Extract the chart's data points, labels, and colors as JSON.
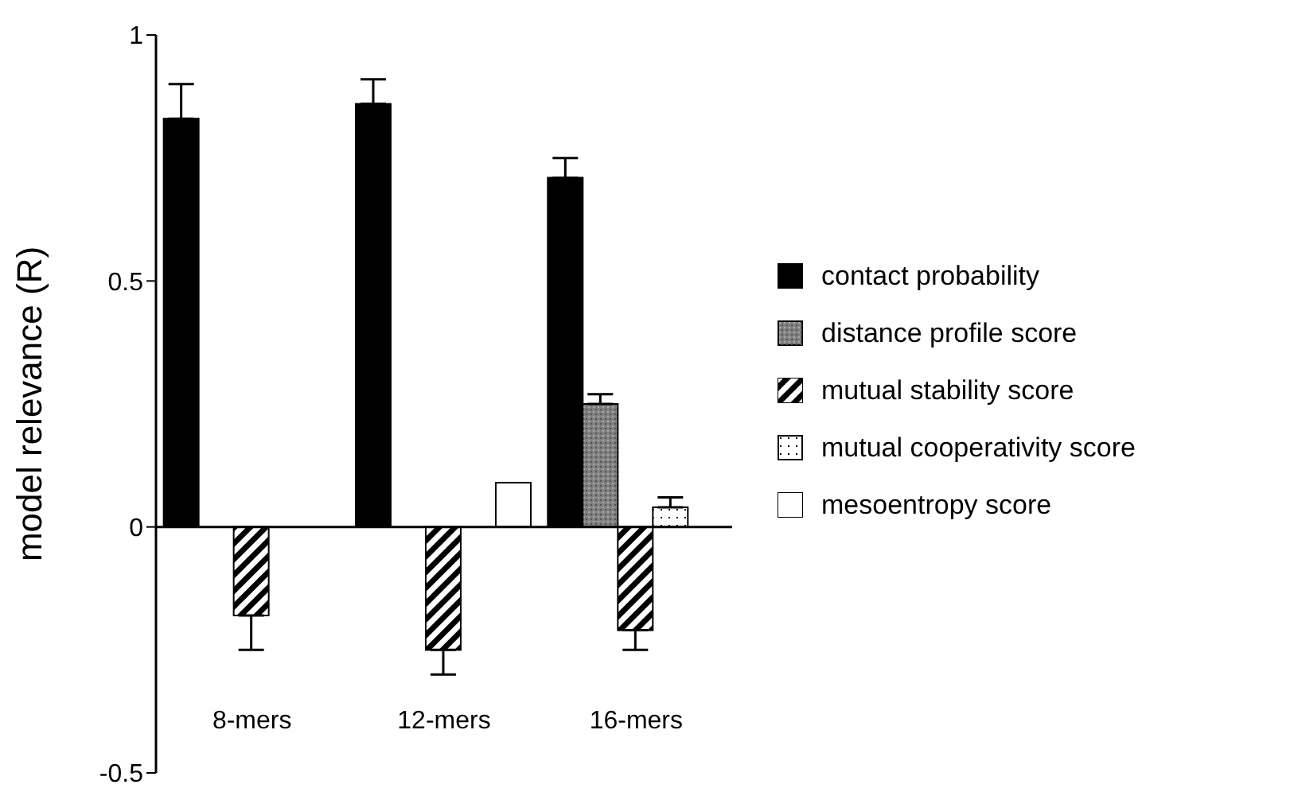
{
  "chart_data": {
    "type": "bar",
    "ylabel": "model relevance (R)",
    "categories": [
      "8-mers",
      "12-mers",
      "16-mers"
    ],
    "ylim": [
      -0.5,
      1
    ],
    "yticks": [
      -0.5,
      0,
      0.5,
      1
    ],
    "legend": "right",
    "ref_lines": [
      {
        "axis": "y",
        "value": 0,
        "color": "#000000"
      }
    ],
    "series": [
      {
        "name": "contact probability",
        "color": "#000000",
        "values": [
          0.83,
          0.86,
          0.71
        ],
        "errors": [
          [
            0.83,
            0.9
          ],
          [
            0.86,
            0.91
          ],
          [
            0.71,
            0.75
          ]
        ]
      },
      {
        "name": "distance profile score",
        "color": "#808080",
        "values": [
          null,
          null,
          0.25
        ],
        "errors": [
          null,
          null,
          [
            0.25,
            0.27
          ]
        ]
      },
      {
        "name": "mutual stability score",
        "color": "#000000",
        "values": [
          -0.18,
          -0.25,
          -0.21
        ],
        "errors": [
          [
            -0.25,
            -0.18
          ],
          [
            -0.3,
            -0.25
          ],
          [
            -0.25,
            -0.21
          ]
        ]
      },
      {
        "name": "mutual cooperativity score",
        "color": "#ffffff",
        "values": [
          null,
          null,
          0.04
        ],
        "errors": [
          null,
          null,
          [
            0.04,
            0.06
          ]
        ]
      },
      {
        "name": "mesoentropy score",
        "color": "#ffffff",
        "values": [
          null,
          0.09,
          null
        ],
        "errors": [
          null,
          null,
          null
        ]
      }
    ]
  }
}
